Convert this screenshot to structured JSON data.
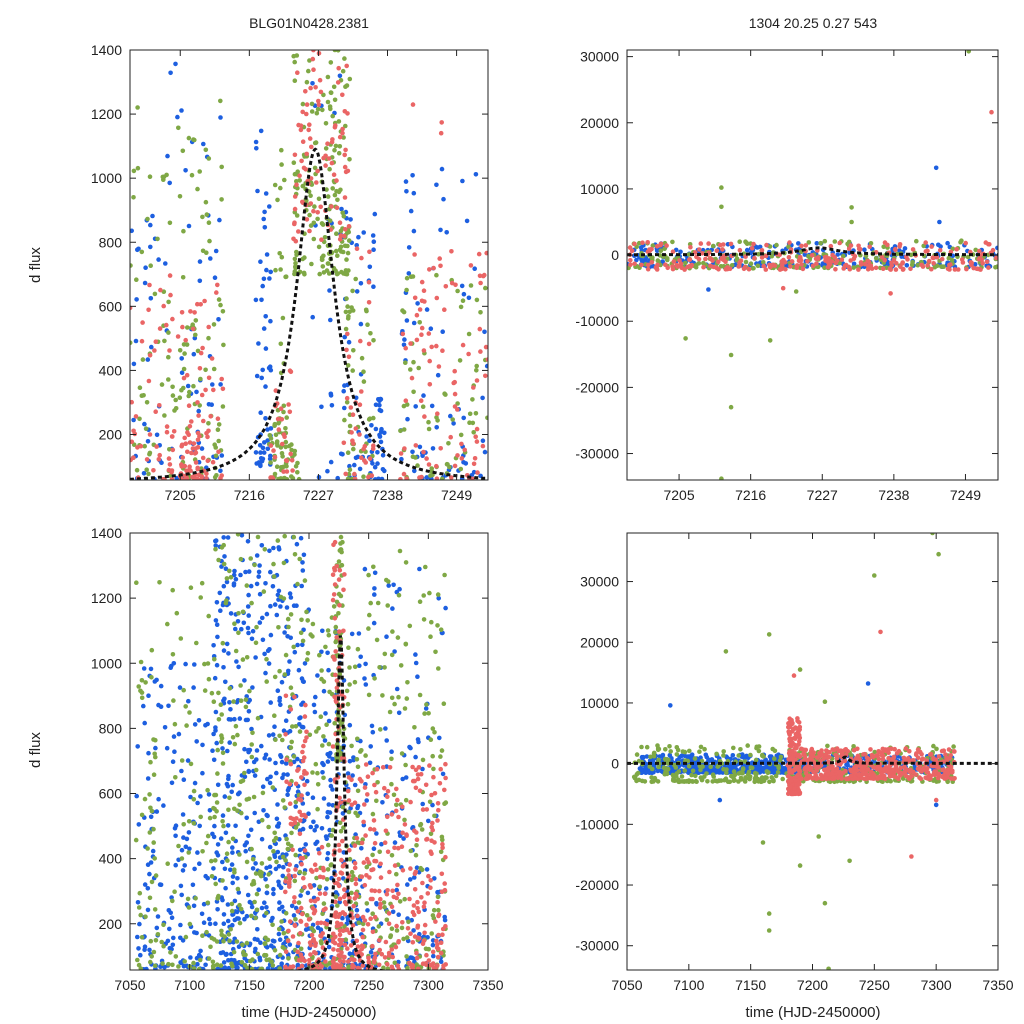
{
  "figure": {
    "title_left": "BLG01N0428.2381",
    "title_right": "1304  20.25  0.27  543"
  },
  "colors": {
    "blue": "#1d5fe0",
    "green": "#7fa845",
    "red": "#ea6565",
    "model": "#111111"
  },
  "chart_data": [
    {
      "id": "top-left",
      "type": "scatter",
      "title": "BLG01N0428.2381",
      "xlabel": "",
      "ylabel": "d flux",
      "xlim": [
        7197,
        7254
      ],
      "ylim": [
        58,
        1400
      ],
      "xticks": [
        7205,
        7216,
        7227,
        7238,
        7249
      ],
      "yticks": [
        200,
        400,
        600,
        800,
        1000,
        1200,
        1400
      ],
      "xtick_labels": [
        "7205",
        "7216",
        "7227",
        "7238",
        "7249"
      ],
      "ytick_labels": [
        "200",
        "400",
        "600",
        "800",
        "1000",
        "1200",
        "1400"
      ],
      "model_peak": {
        "t0": 7226.5,
        "peak": 1090,
        "tE": 3.6,
        "base": 45
      },
      "series": [
        {
          "name": "blue",
          "color": "#1d5fe0",
          "clusters": [
            [
              7197,
              7202,
              60,
              900,
              30
            ],
            [
              7202,
              7212,
              60,
              1380,
              55
            ],
            [
              7217,
              7219.5,
              100,
              1150,
              55
            ],
            [
              7226,
              7232,
              60,
              1350,
              25
            ],
            [
              7231,
              7236,
              60,
              900,
              45
            ],
            [
              7240,
              7254,
              60,
              1050,
              75
            ],
            [
              7236,
              7237.5,
              60,
              350,
              25
            ]
          ]
        },
        {
          "name": "green",
          "color": "#7fa845",
          "clusters": [
            [
              7197,
              7212,
              60,
              1250,
              130
            ],
            [
              7220,
              7222,
              60,
              1100,
              45
            ],
            [
              7223,
              7232,
              700,
              1400,
              180
            ],
            [
              7231,
              7236,
              60,
              700,
              45
            ],
            [
              7240,
              7254,
              60,
              700,
              70
            ],
            [
              7219,
              7224,
              60,
              300,
              30
            ]
          ]
        },
        {
          "name": "red",
          "color": "#ea6565",
          "clusters": [
            [
              7197,
              7212,
              60,
              700,
              110
            ],
            [
              7219,
              7223,
              60,
              400,
              30
            ],
            [
              7223,
              7232,
              800,
              1400,
              90
            ],
            [
              7231,
              7236,
              60,
              800,
              35
            ],
            [
              7240,
              7254,
              60,
              800,
              90
            ],
            [
              7241,
              7247,
              1100,
              1330,
              3
            ],
            [
              7205,
              7208,
              60,
              230,
              30
            ]
          ]
        }
      ]
    },
    {
      "id": "top-right",
      "type": "scatter",
      "title": "1304  20.25  0.27  543",
      "xlabel": "",
      "ylabel": "",
      "xlim": [
        7197,
        7254
      ],
      "ylim": [
        -34000,
        31000
      ],
      "xticks": [
        7205,
        7216,
        7227,
        7238,
        7249
      ],
      "yticks": [
        -30000,
        -20000,
        -10000,
        0,
        10000,
        20000,
        30000
      ],
      "xtick_labels": [
        "7205",
        "7216",
        "7227",
        "7238",
        "7249"
      ],
      "ytick_labels": [
        "-30000",
        "-20000",
        "-10000",
        "0",
        "10000",
        "20000",
        "30000"
      ],
      "model_peak": {
        "t0": 7226.5,
        "peak": 1090,
        "tE": 3.6,
        "base": 45
      },
      "series": [
        {
          "name": "blue",
          "color": "#1d5fe0",
          "clusters": [
            [
              7197,
              7254,
              -1800,
              1800,
              260
            ]
          ],
          "outliers": [
            [
              7244.5,
              13200
            ],
            [
              7245,
              5000
            ],
            [
              7209.5,
              -5200
            ]
          ]
        },
        {
          "name": "green",
          "color": "#7fa845",
          "clusters": [
            [
              7197,
              7254,
              -2000,
              2200,
              220
            ]
          ],
          "outliers": [
            [
              7211.5,
              10200
            ],
            [
              7211.5,
              7300
            ],
            [
              7231.5,
              7200
            ],
            [
              7231.5,
              5000
            ],
            [
              7206,
              -12600
            ],
            [
              7213,
              -15100
            ],
            [
              7213,
              -23000
            ],
            [
              7219,
              -12900
            ],
            [
              7223,
              -5500
            ],
            [
              7211.5,
              -33800
            ],
            [
              7249.5,
              30800
            ]
          ]
        },
        {
          "name": "red",
          "color": "#ea6565",
          "clusters": [
            [
              7197,
              7254,
              -2200,
              2000,
              260
            ]
          ],
          "outliers": [
            [
              7253,
              21600
            ],
            [
              7237.5,
              -5800
            ],
            [
              7221,
              -5000
            ]
          ]
        }
      ]
    },
    {
      "id": "bottom-left",
      "type": "scatter",
      "title": "",
      "xlabel": "time (HJD-2450000)",
      "ylabel": "d flux",
      "xlim": [
        7050,
        7350
      ],
      "ylim": [
        58,
        1400
      ],
      "xticks": [
        7050,
        7100,
        7150,
        7200,
        7250,
        7300,
        7350
      ],
      "yticks": [
        200,
        400,
        600,
        800,
        1000,
        1200,
        1400
      ],
      "xtick_labels": [
        "7050",
        "7100",
        "7150",
        "7200",
        "7250",
        "7300",
        "7350"
      ],
      "ytick_labels": [
        "200",
        "400",
        "600",
        "800",
        "1000",
        "1200",
        "1400"
      ],
      "model_peak": {
        "t0": 7226.5,
        "peak": 1090,
        "tE": 3.6,
        "base": 45
      },
      "series": [
        {
          "name": "blue",
          "color": "#1d5fe0",
          "clusters": [
            [
              7055,
              7120,
              60,
              1000,
              170
            ],
            [
              7120,
              7200,
              60,
              1400,
              520
            ],
            [
              7200,
              7245,
              60,
              1100,
              170
            ],
            [
              7245,
              7315,
              60,
              1300,
              140
            ]
          ]
        },
        {
          "name": "green",
          "color": "#7fa845",
          "clusters": [
            [
              7055,
              7120,
              60,
              1250,
              120
            ],
            [
              7120,
              7200,
              60,
              1400,
              260
            ],
            [
              7200,
              7245,
              60,
              1200,
              140
            ],
            [
              7222,
              7228,
              700,
              1400,
              70
            ],
            [
              7245,
              7315,
              60,
              1350,
              170
            ]
          ]
        },
        {
          "name": "red",
          "color": "#ea6565",
          "clusters": [
            [
              7180,
              7198,
              60,
              900,
              90
            ],
            [
              7220,
              7230,
              60,
              1400,
              120
            ],
            [
              7230,
              7315,
              60,
              700,
              280
            ],
            [
              7200,
              7215,
              60,
              450,
              60
            ]
          ]
        }
      ]
    },
    {
      "id": "bottom-right",
      "type": "scatter",
      "title": "",
      "xlabel": "time (HJD-2450000)",
      "ylabel": "",
      "xlim": [
        7050,
        7350
      ],
      "ylim": [
        -34000,
        38000
      ],
      "xticks": [
        7050,
        7100,
        7150,
        7200,
        7250,
        7300,
        7350
      ],
      "yticks": [
        -30000,
        -20000,
        -10000,
        0,
        10000,
        20000,
        30000
      ],
      "xtick_labels": [
        "7050",
        "7100",
        "7150",
        "7200",
        "7250",
        "7300",
        "7350"
      ],
      "ytick_labels": [
        "-30000",
        "-20000",
        "-10000",
        "0",
        "10000",
        "20000",
        "30000"
      ],
      "model_peak": {
        "t0": 7226.5,
        "peak": 1090,
        "tE": 3.6,
        "base": 45
      },
      "series": [
        {
          "name": "blue",
          "color": "#1d5fe0",
          "clusters": [
            [
              7060,
              7200,
              -1500,
              1500,
              500
            ],
            [
              7200,
              7315,
              -1500,
              1500,
              200
            ]
          ],
          "outliers": [
            [
              7085,
              9600
            ],
            [
              7245,
              13200
            ],
            [
              7300,
              -6800
            ],
            [
              7125,
              -6000
            ]
          ]
        },
        {
          "name": "green",
          "color": "#7fa845",
          "clusters": [
            [
              7055,
              7315,
              -3000,
              3000,
              420
            ]
          ],
          "outliers": [
            [
              7130,
              18500
            ],
            [
              7165,
              21300
            ],
            [
              7190,
              15500
            ],
            [
              7250,
              31000
            ],
            [
              7297,
              38000
            ],
            [
              7302,
              34500
            ],
            [
              7210,
              10200
            ],
            [
              7165,
              -24700
            ],
            [
              7165,
              -27500
            ],
            [
              7210,
              -23000
            ],
            [
              7230,
              -16000
            ],
            [
              7190,
              -16800
            ],
            [
              7160,
              -13000
            ],
            [
              7205,
              -12000
            ],
            [
              7213,
              -33800
            ]
          ]
        },
        {
          "name": "red",
          "color": "#ea6565",
          "clusters": [
            [
              7180,
              7190,
              -5000,
              7500,
              160
            ],
            [
              7190,
              7315,
              -2500,
              2500,
              420
            ]
          ],
          "outliers": [
            [
              7255,
              21700
            ],
            [
              7280,
              -15300
            ],
            [
              7185,
              14500
            ],
            [
              7300,
              -6000
            ]
          ]
        }
      ]
    }
  ]
}
